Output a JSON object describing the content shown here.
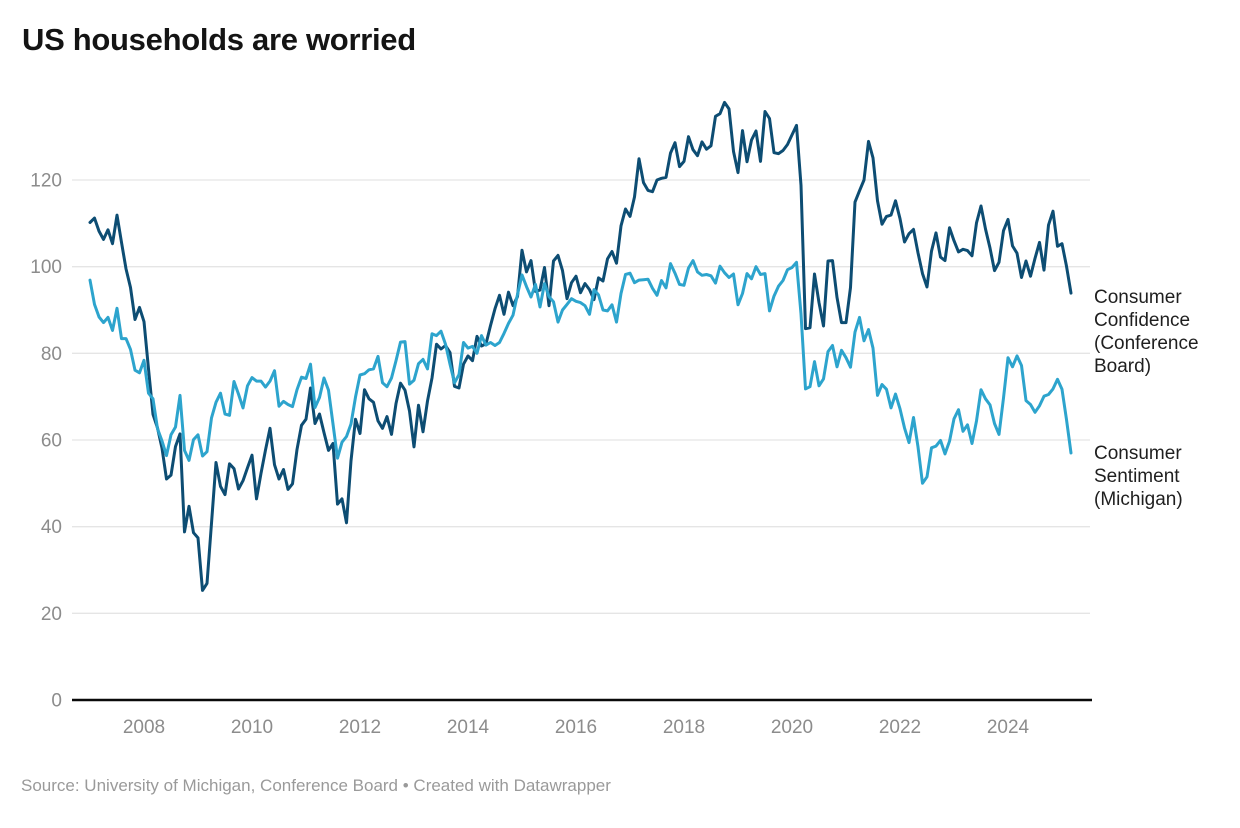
{
  "title": "US households are worried",
  "source_note": "Source: University of Michigan, Conference Board • Created with Datawrapper",
  "colors": {
    "confidence_line": "#0d4d73",
    "sentiment_line": "#2da4cd",
    "grid": "#e5e5e5",
    "baseline": "#0a0a0a",
    "axis_text": "#8c8c8c",
    "title_text": "#141414",
    "label_text": "#1f1f1f",
    "source_text": "#9a9a9a"
  },
  "chart_data": {
    "type": "line",
    "title": "US households are worried",
    "xlabel": "",
    "ylabel": "",
    "x_start_year": 2007,
    "x_frequency": "monthly",
    "x_end": "2025-03",
    "xlim": [
      2007.0,
      2025.25
    ],
    "ylim": [
      0,
      140
    ],
    "y_ticks": [
      0,
      20,
      40,
      60,
      80,
      100,
      120
    ],
    "x_ticks": [
      2008,
      2010,
      2012,
      2014,
      2016,
      2018,
      2020,
      2022,
      2024
    ],
    "grid": true,
    "legend_position": "right-of-line-ends",
    "series": [
      {
        "name": "Consumer Confidence (Conference Board)",
        "color_key": "confidence_line",
        "values": [
          110.2,
          111.2,
          108.2,
          106.3,
          108.5,
          105.3,
          111.9,
          105.6,
          99.5,
          95.2,
          87.8,
          90.6,
          87.3,
          76.4,
          65.9,
          62.8,
          58.1,
          51.0,
          51.9,
          58.5,
          61.4,
          38.8,
          44.7,
          38.6,
          37.4,
          25.3,
          26.9,
          40.8,
          54.8,
          49.3,
          47.4,
          54.5,
          53.4,
          48.7,
          50.6,
          53.6,
          56.5,
          46.4,
          52.3,
          57.7,
          62.7,
          54.3,
          51.0,
          53.2,
          48.6,
          49.9,
          57.8,
          63.4,
          64.8,
          72.0,
          63.8,
          66.0,
          61.7,
          57.6,
          59.2,
          45.2,
          46.4,
          40.9,
          55.2,
          64.8,
          61.5,
          71.6,
          69.5,
          68.7,
          64.4,
          62.7,
          65.4,
          61.3,
          68.4,
          73.1,
          71.5,
          66.7,
          58.4,
          68.0,
          61.9,
          69.0,
          74.3,
          82.1,
          81.0,
          81.8,
          80.2,
          72.4,
          72.0,
          77.5,
          79.4,
          78.3,
          83.9,
          81.7,
          82.2,
          86.4,
          90.3,
          93.4,
          89.0,
          94.1,
          91.0,
          93.1,
          103.8,
          98.8,
          101.4,
          94.3,
          94.6,
          99.8,
          91.0,
          101.3,
          102.6,
          99.1,
          92.6,
          96.3,
          97.8,
          94.0,
          96.1,
          94.7,
          92.4,
          97.4,
          96.7,
          101.8,
          103.5,
          100.8,
          109.4,
          113.3,
          111.6,
          116.1,
          124.9,
          119.4,
          117.6,
          117.3,
          120.0,
          120.4,
          120.6,
          126.2,
          128.6,
          123.1,
          124.3,
          130.0,
          127.0,
          125.6,
          128.8,
          127.1,
          127.9,
          134.7,
          135.3,
          137.9,
          136.4,
          126.6,
          121.7,
          131.4,
          124.2,
          129.2,
          131.3,
          124.3,
          135.8,
          134.2,
          126.3,
          126.1,
          126.8,
          128.2,
          130.4,
          132.6,
          118.8,
          85.7,
          85.9,
          98.3,
          91.7,
          86.3,
          101.3,
          101.4,
          92.9,
          87.1,
          87.1,
          95.2,
          114.9,
          117.5,
          120.0,
          128.9,
          125.1,
          115.2,
          109.8,
          111.6,
          111.9,
          115.2,
          111.1,
          105.7,
          107.6,
          108.6,
          103.2,
          98.4,
          95.3,
          103.6,
          107.8,
          102.2,
          101.4,
          109.0,
          106.0,
          103.4,
          104.0,
          103.7,
          102.5,
          110.1,
          114.0,
          108.7,
          104.3,
          99.1,
          101.0,
          108.3,
          110.9,
          104.8,
          103.1,
          97.5,
          101.3,
          97.8,
          101.9,
          105.6,
          99.2,
          109.6,
          112.8,
          104.7,
          105.3,
          100.1,
          93.9
        ]
      },
      {
        "name": "Consumer Sentiment (Michigan)",
        "color_key": "sentiment_line",
        "values": [
          96.9,
          91.3,
          88.4,
          87.1,
          88.3,
          85.3,
          90.4,
          83.4,
          83.4,
          80.9,
          76.1,
          75.5,
          78.4,
          70.8,
          69.5,
          62.6,
          59.8,
          56.4,
          61.2,
          63.0,
          70.3,
          57.6,
          55.3,
          60.1,
          61.2,
          56.3,
          57.3,
          65.1,
          68.7,
          70.8,
          66.0,
          65.7,
          73.5,
          70.6,
          67.4,
          72.5,
          74.4,
          73.6,
          73.6,
          72.2,
          73.6,
          76.0,
          67.8,
          68.9,
          68.2,
          67.7,
          71.6,
          74.5,
          74.2,
          77.5,
          67.5,
          69.8,
          74.3,
          71.5,
          63.7,
          55.8,
          59.5,
          60.8,
          63.7,
          69.9,
          75.0,
          75.3,
          76.2,
          76.4,
          79.3,
          73.2,
          72.3,
          74.3,
          78.3,
          82.6,
          82.7,
          72.9,
          73.8,
          77.6,
          78.6,
          76.4,
          84.5,
          84.1,
          85.1,
          82.1,
          77.5,
          73.2,
          75.1,
          82.5,
          81.2,
          81.6,
          80.0,
          84.1,
          81.9,
          82.5,
          81.8,
          82.5,
          84.6,
          86.9,
          88.8,
          93.6,
          98.1,
          95.4,
          93.0,
          95.9,
          90.7,
          96.1,
          93.1,
          91.9,
          87.2,
          90.0,
          91.3,
          92.6,
          92.0,
          91.7,
          91.0,
          89.0,
          94.7,
          93.5,
          90.0,
          89.8,
          91.2,
          87.2,
          93.8,
          98.2,
          98.5,
          96.3,
          96.9,
          97.0,
          97.1,
          95.0,
          93.4,
          96.8,
          95.1,
          100.7,
          98.5,
          95.9,
          95.7,
          99.7,
          101.4,
          98.8,
          98.0,
          98.2,
          97.9,
          96.2,
          100.1,
          98.6,
          97.5,
          98.3,
          91.2,
          93.8,
          98.4,
          97.2,
          100.0,
          98.2,
          98.4,
          89.8,
          93.2,
          95.5,
          96.8,
          99.3,
          99.8,
          101.0,
          89.1,
          71.8,
          72.3,
          78.1,
          72.5,
          74.1,
          80.4,
          81.8,
          76.9,
          80.7,
          79.0,
          76.8,
          84.9,
          88.3,
          82.9,
          85.5,
          81.2,
          70.3,
          72.8,
          71.7,
          67.4,
          70.6,
          67.2,
          62.8,
          59.4,
          65.2,
          58.4,
          50.0,
          51.5,
          58.2,
          58.6,
          59.9,
          56.8,
          59.7,
          64.9,
          67.0,
          62.0,
          63.5,
          59.2,
          64.4,
          71.6,
          69.5,
          68.1,
          63.8,
          61.3,
          69.7,
          79.0,
          76.9,
          79.4,
          77.2,
          69.1,
          68.2,
          66.4,
          67.9,
          70.1,
          70.5,
          71.8,
          74.0,
          71.7,
          64.7,
          57.0
        ]
      }
    ]
  }
}
